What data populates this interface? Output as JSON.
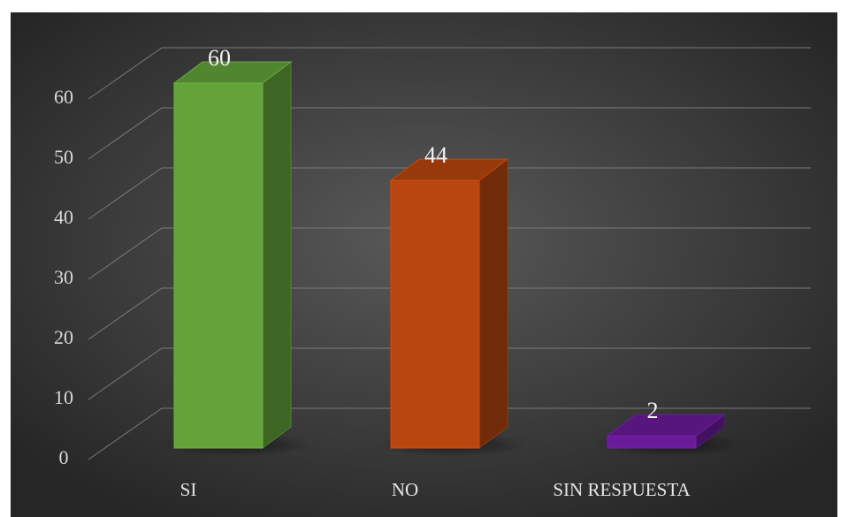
{
  "chart_data": {
    "type": "bar3d",
    "categories": [
      "SI",
      "NO",
      "SIN RESPUESTA"
    ],
    "values": [
      60,
      44,
      2
    ],
    "colors": [
      "#63a33a",
      "#b8460e",
      "#6a1b9a"
    ],
    "ylim": [
      0,
      60
    ],
    "yticks": [
      0,
      10,
      20,
      30,
      40,
      50,
      60
    ],
    "grid": true
  }
}
